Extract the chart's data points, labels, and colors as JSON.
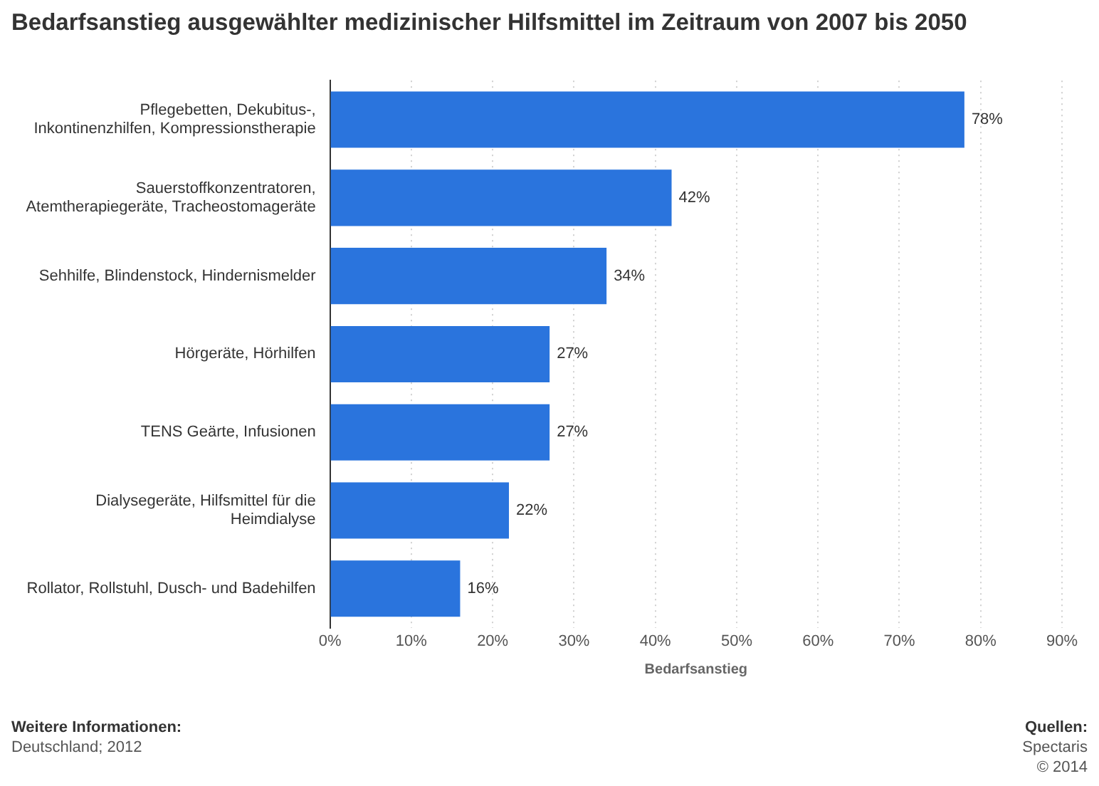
{
  "chart_data": {
    "type": "bar",
    "orientation": "horizontal",
    "title": "Bedarfsanstieg ausgewählter medizinischer Hilfsmittel im Zeitraum von 2007 bis 2050",
    "categories": [
      "Pflegebetten, Dekubitus-, Inkontinenzhilfen, Kompressionstherapie",
      "Sauerstoffkonzentratoren, Atemtherapiegeräte, Tracheostomageräte",
      "Sehhilfe, Blindenstock, Hindernismelder",
      "Hörgeräte, Hörhilfen",
      "TENS Geärte, Infusionen",
      "Dialysegeräte, Hilfsmittel für die Heimdialyse",
      "Rollator, Rollstuhl, Dusch- und Badehilfen"
    ],
    "values": [
      78,
      42,
      34,
      27,
      27,
      22,
      16
    ],
    "color": "#2a74dd",
    "xlim": [
      0,
      90
    ],
    "xticks": [
      {
        "value": 0,
        "label": "0%"
      },
      {
        "value": 10,
        "label": "10%"
      },
      {
        "value": 20,
        "label": "20%"
      },
      {
        "value": 30,
        "label": "30%"
      },
      {
        "value": 40,
        "label": "40%"
      },
      {
        "value": 50,
        "label": "50%"
      },
      {
        "value": 60,
        "label": "60%"
      },
      {
        "value": 70,
        "label": "70%"
      },
      {
        "value": 80,
        "label": "80%"
      },
      {
        "value": 90,
        "label": "90%"
      }
    ],
    "xlabel": "Bedarfsanstieg",
    "grid": "x",
    "legend": false,
    "value_labels": [
      "78%",
      "42%",
      "34%",
      "27%",
      "27%",
      "22%",
      "16%"
    ],
    "annotations": [
      "Weitere Informationen:",
      "Deutschland; 2012",
      "Quellen:",
      "Spectaris",
      "© 2014"
    ]
  }
}
